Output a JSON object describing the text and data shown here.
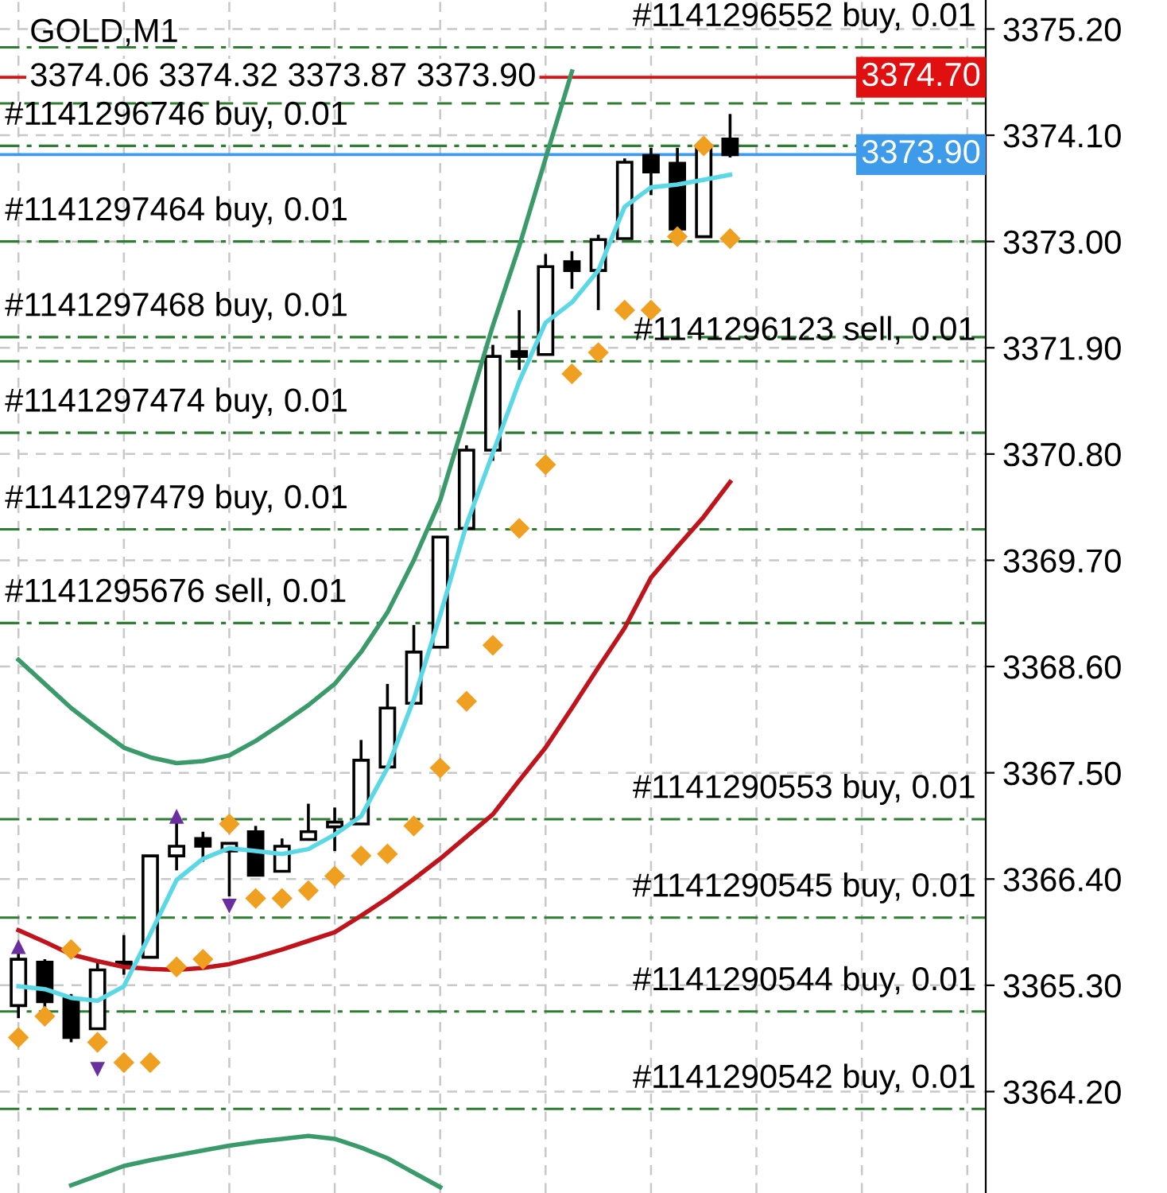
{
  "chart_data": {
    "type": "candlestick",
    "title": "GOLD,M1",
    "subtitle": "3374.06 3374.32 3373.87 3373.90",
    "categories": [
      null,
      null,
      null,
      null,
      null,
      null,
      null,
      null,
      null,
      null,
      null,
      null,
      null,
      null,
      null,
      null,
      null,
      null,
      null,
      null,
      null,
      null,
      null,
      null,
      null,
      null,
      null,
      null,
      null,
      null,
      null,
      null,
      null,
      null,
      null,
      null,
      null
    ],
    "ohlc": [
      [
        3365.09,
        3365.65,
        3364.96,
        3365.57
      ],
      [
        3365.54,
        3365.57,
        3365.04,
        3365.13
      ],
      [
        3365.16,
        3365.21,
        3364.71,
        3364.76
      ],
      [
        3364.85,
        3365.57,
        3364.85,
        3365.46
      ],
      [
        3365.52,
        3365.82,
        3365.41,
        3365.54
      ],
      [
        3365.59,
        3366.64,
        3365.59,
        3366.64
      ],
      [
        3366.64,
        3366.99,
        3366.49,
        3366.74
      ],
      [
        3366.82,
        3366.89,
        3366.58,
        3366.74
      ],
      [
        3366.69,
        3366.77,
        3366.22,
        3366.77
      ],
      [
        3366.89,
        3366.95,
        3366.44,
        3366.44
      ],
      [
        3366.48,
        3366.82,
        3366.48,
        3366.74
      ],
      [
        3366.81,
        3367.18,
        3366.81,
        3366.89
      ],
      [
        3366.94,
        3367.14,
        3366.69,
        3366.99
      ],
      [
        3366.97,
        3367.84,
        3366.97,
        3367.63
      ],
      [
        3367.56,
        3368.42,
        3367.56,
        3368.17
      ],
      [
        3368.22,
        3369.03,
        3368.22,
        3368.75
      ],
      [
        3368.8,
        3369.94,
        3368.8,
        3369.94
      ],
      [
        3370.03,
        3370.89,
        3370.03,
        3370.84
      ],
      [
        3370.84,
        3371.93,
        3370.73,
        3371.81
      ],
      [
        3371.86,
        3372.29,
        3371.67,
        3371.81
      ],
      [
        3371.83,
        3372.87,
        3371.83,
        3372.74
      ],
      [
        3372.79,
        3372.9,
        3372.51,
        3372.7
      ],
      [
        3372.7,
        3373.07,
        3372.29,
        3373.02
      ],
      [
        3373.03,
        3373.86,
        3373.03,
        3373.82
      ],
      [
        3373.89,
        3373.97,
        3373.48,
        3373.72
      ],
      [
        3373.81,
        3373.97,
        3373.13,
        3373.13
      ],
      [
        3373.05,
        3373.99,
        3373.05,
        3373.99
      ],
      [
        3374.06,
        3374.32,
        3373.87,
        3373.9
      ],
      null,
      null,
      null,
      null,
      null,
      null,
      null,
      null,
      null
    ],
    "color": "#000000",
    "series": [
      {
        "type": "line",
        "color": "#3a9a6a",
        "values": [
          3368.67,
          3368.42,
          3368.17,
          3367.96,
          3367.76,
          3367.66,
          3367.6,
          3367.62,
          3367.68,
          3367.83,
          3368.01,
          3368.2,
          3368.42,
          3368.75,
          3369.16,
          3369.7,
          3370.32,
          3371.22,
          3372.13,
          3372.95,
          3373.86,
          3374.76,
          null,
          null,
          null,
          null,
          null,
          null,
          null,
          null,
          null,
          null,
          null,
          null,
          null,
          null,
          null
        ]
      },
      {
        "type": "line",
        "color": "#3a9a6a",
        "values": [
          null,
          null,
          3363.23,
          3363.33,
          3363.43,
          3363.49,
          3363.54,
          3363.59,
          3363.64,
          3363.68,
          3363.71,
          3363.74,
          3363.71,
          3363.62,
          3363.51,
          3363.36,
          3363.21,
          null,
          null,
          null,
          null,
          null,
          null,
          null,
          null,
          null,
          null,
          null,
          null,
          null,
          null,
          null,
          null,
          null,
          null,
          null,
          null
        ]
      },
      {
        "type": "line",
        "color": "#c0141c",
        "values": [
          3365.87,
          3365.75,
          3365.62,
          3365.55,
          3365.49,
          3365.47,
          3365.46,
          3365.48,
          3365.52,
          3365.59,
          3365.67,
          3365.76,
          3365.85,
          3366.02,
          3366.2,
          3366.4,
          3366.61,
          3366.84,
          3367.07,
          3367.42,
          3367.76,
          3368.17,
          3368.59,
          3369.0,
          3369.52,
          3369.84,
          3370.15,
          3370.51,
          null,
          null,
          null,
          null,
          null,
          null,
          null,
          null,
          null
        ]
      },
      {
        "type": "line",
        "color": "#5ad8e6",
        "values": [
          3365.29,
          3365.26,
          3365.17,
          3365.14,
          3365.29,
          3365.83,
          3366.39,
          3366.61,
          3366.72,
          3366.69,
          3366.66,
          3366.71,
          3366.86,
          3367.05,
          3367.55,
          3368.26,
          3369.13,
          3370.07,
          3370.81,
          3371.55,
          3372.16,
          3372.37,
          3372.7,
          3373.36,
          3373.56,
          3373.59,
          3373.64,
          3373.69,
          null,
          null,
          null,
          null,
          null,
          null,
          null,
          null,
          null
        ]
      },
      {
        "type": "scatter",
        "marker": "diamond",
        "color": "#f0a020",
        "values": [
          3364.76,
          3364.98,
          3365.67,
          3364.71,
          3364.5,
          3364.5,
          3365.49,
          3365.57,
          3366.97,
          3366.2,
          3366.2,
          3366.28,
          3366.43,
          3366.64,
          3366.66,
          3366.95,
          3367.55,
          3368.24,
          3368.82,
          3370.03,
          3370.69,
          3371.63,
          3371.85,
          3372.29,
          3372.29,
          3373.05,
          3373.99,
          3373.03,
          null,
          null,
          null,
          null,
          null,
          null,
          null,
          null,
          null
        ]
      },
      {
        "type": "scatter",
        "marker": "triangle",
        "color": "#6a2ea0",
        "values": [
          3365.7,
          null,
          null,
          null,
          null,
          null,
          3367.05,
          null,
          null,
          null,
          null,
          null,
          null,
          null,
          null,
          null,
          null,
          null,
          null,
          null,
          null,
          null,
          null,
          null,
          null,
          null,
          null,
          null,
          null,
          null,
          null,
          null,
          null,
          null,
          null,
          null,
          null
        ]
      },
      {
        "type": "scatter",
        "marker": "triangle-down",
        "color": "#6a2ea0",
        "values": [
          null,
          null,
          null,
          3364.43,
          null,
          null,
          null,
          null,
          3366.12,
          null,
          null,
          null,
          null,
          null,
          null,
          null,
          null,
          null,
          null,
          null,
          null,
          null,
          null,
          null,
          null,
          null,
          null,
          null,
          null,
          null,
          null,
          null,
          null,
          null,
          null,
          null,
          null
        ]
      }
    ],
    "ref_lines": [
      {
        "axis": "y",
        "value": 3375.01,
        "label": "#1141296552 buy, 0.01",
        "color": "#2e7d32",
        "line_style": "dashdot"
      },
      {
        "axis": "y",
        "value": 3374.7,
        "label": "3374.70",
        "color": "#e01010",
        "line_style": "solid"
      },
      {
        "axis": "y",
        "value": 3374.43,
        "color": "#2e7d32",
        "line_style": "dashed"
      },
      {
        "axis": "y",
        "value": 3373.99,
        "label": "#1141296746 buy, 0.01",
        "color": "#2e7d32",
        "line_style": "dashdot"
      },
      {
        "axis": "y",
        "value": 3373.9,
        "label": "3373.90",
        "color": "#3d9be9",
        "line_style": "solid"
      },
      {
        "axis": "y",
        "value": 3373.0,
        "label": "#1141297464 buy, 0.01",
        "color": "#2e7d32",
        "line_style": "dashdot"
      },
      {
        "axis": "y",
        "value": 3372.01,
        "label": "#1141297468 buy, 0.01",
        "color": "#2e7d32",
        "line_style": "dashdot"
      },
      {
        "axis": "y",
        "value": 3371.76,
        "label": "#1141296123 sell, 0.01",
        "color": "#2e7d32",
        "line_style": "dashdot"
      },
      {
        "axis": "y",
        "value": 3371.02,
        "label": "#1141297474 buy, 0.01",
        "color": "#2e7d32",
        "line_style": "dashdot"
      },
      {
        "axis": "y",
        "value": 3370.02,
        "label": "#1141297479 buy, 0.01",
        "color": "#2e7d32",
        "line_style": "dashdot"
      },
      {
        "axis": "y",
        "value": 3369.05,
        "label": "#1141295676 sell, 0.01",
        "color": "#2e7d32",
        "line_style": "dashdot"
      },
      {
        "axis": "y",
        "value": 3367.02,
        "label": "#1141290553 buy, 0.01",
        "color": "#2e7d32",
        "line_style": "dashdot"
      },
      {
        "axis": "y",
        "value": 3366.0,
        "label": "#1141290545 buy, 0.01",
        "color": "#2e7d32",
        "line_style": "dashdot"
      },
      {
        "axis": "y",
        "value": 3365.03,
        "label": "#1141290544 buy, 0.01",
        "color": "#2e7d32",
        "line_style": "dashdot"
      },
      {
        "axis": "y",
        "value": 3364.02,
        "label": "#1141290542 buy, 0.01",
        "color": "#2e7d32",
        "line_style": "dashdot"
      }
    ],
    "ylim": [
      3363.15,
      3375.5
    ],
    "yticks": [
      {
        "value": 3364.2,
        "label": "3364.20"
      },
      {
        "value": 3365.3,
        "label": "3365.30"
      },
      {
        "value": 3366.4,
        "label": "3366.40"
      },
      {
        "value": 3367.5,
        "label": "3367.50"
      },
      {
        "value": 3368.6,
        "label": "3368.60"
      },
      {
        "value": 3369.7,
        "label": "3369.70"
      },
      {
        "value": 3370.8,
        "label": "3370.80"
      },
      {
        "value": 3371.9,
        "label": "3371.90"
      },
      {
        "value": 3373.0,
        "label": "3373.00"
      },
      {
        "value": 3374.1,
        "label": "3374.10"
      },
      {
        "value": 3375.2,
        "label": "3375.20"
      }
    ],
    "grid": true,
    "tick_labels": "y"
  }
}
